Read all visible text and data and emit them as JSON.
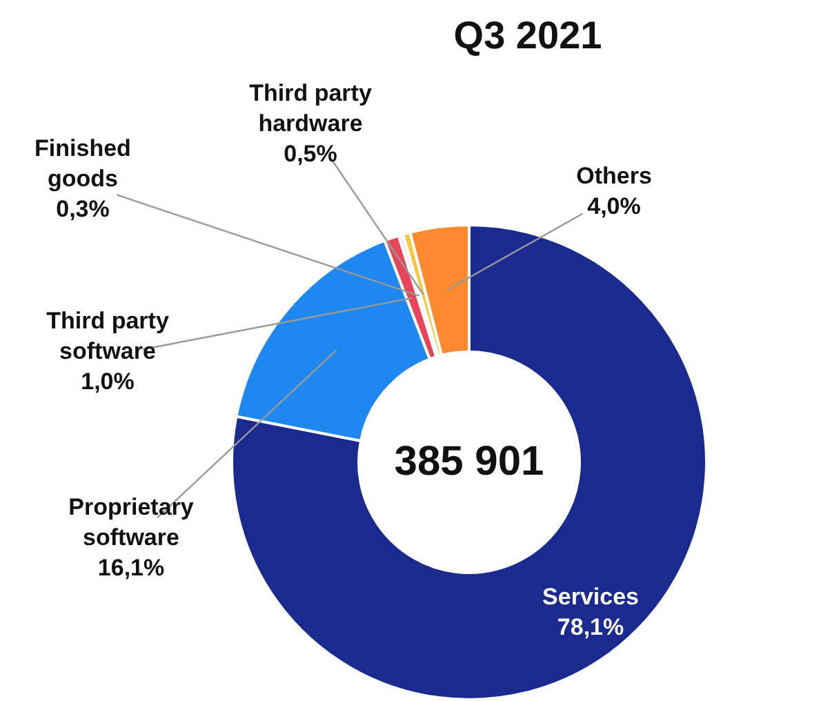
{
  "chart_data": {
    "type": "donut",
    "title": "Q3 2021",
    "categories": [
      "Services",
      "Proprietary software",
      "Third party software",
      "Finished goods",
      "Third party hardware",
      "Others"
    ],
    "values": [
      78.1,
      16.1,
      1.0,
      0.3,
      0.5,
      4.0
    ],
    "colors": [
      "#1b2a8e",
      "#1e88f0",
      "#e8445a",
      "#eeeeee",
      "#f5c842",
      "#ff8a30"
    ],
    "value_labels": [
      "78,1%",
      "16,1%",
      "1,0%",
      "0,3%",
      "0,5%",
      "4,0%"
    ],
    "annotations": [
      "385 901"
    ]
  }
}
